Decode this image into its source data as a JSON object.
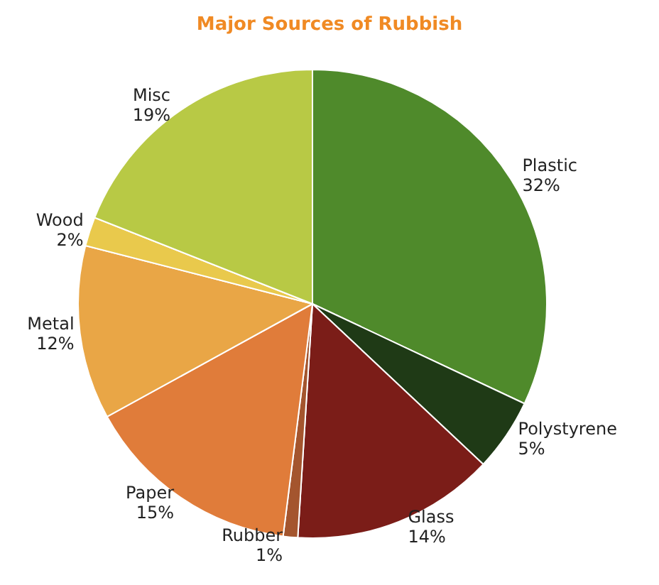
{
  "chart_data": {
    "type": "pie",
    "title": "Major Sources of Rubbish",
    "categories": [
      "Plastic",
      "Polystyrene",
      "Glass",
      "Rubber",
      "Paper",
      "Metal",
      "Wood",
      "Misc"
    ],
    "values": [
      32,
      5,
      14,
      1,
      15,
      12,
      2,
      19
    ],
    "value_labels": [
      "32%",
      "5%",
      "14%",
      "1%",
      "15%",
      "12%",
      "2%",
      "19%"
    ],
    "colors": [
      "#4f8a2b",
      "#1f3a16",
      "#7b1d18",
      "#a4552e",
      "#e07c3a",
      "#e9a646",
      "#e9c94c",
      "#b8c945"
    ],
    "legend": false
  }
}
